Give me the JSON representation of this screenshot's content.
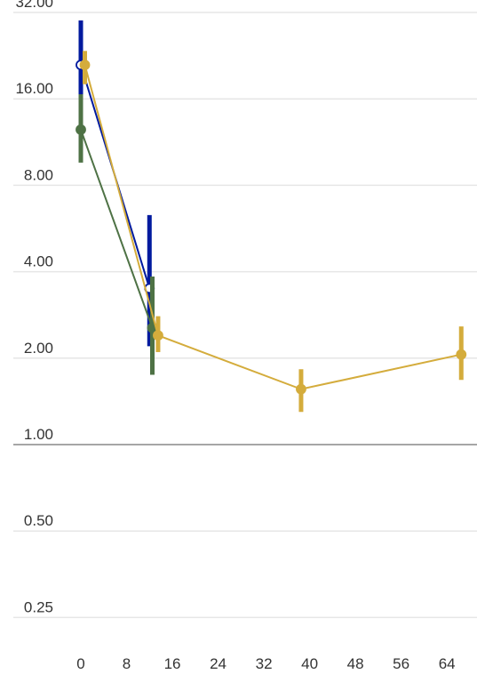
{
  "chart_data": {
    "type": "line",
    "title": "",
    "xlabel": "",
    "ylabel": "",
    "y_scale": "log2",
    "ylim": [
      0.2,
      32
    ],
    "xlim": [
      -2,
      69
    ],
    "y_ticks": [
      0.25,
      0.5,
      1,
      2,
      4,
      8,
      16,
      32
    ],
    "y_tick_labels": [
      "0.25",
      "0.50",
      "1.00",
      "2.00",
      "4.00",
      "8.00",
      "16.00",
      "32.00"
    ],
    "x_ticks": [
      0,
      8,
      16,
      24,
      32,
      40,
      48,
      56,
      64
    ],
    "x_tick_labels": [
      "0",
      "8",
      "16",
      "24",
      "32",
      "40",
      "48",
      "56",
      "64"
    ],
    "reference_line": 1,
    "grid": "horizontal",
    "legend": "none",
    "series": [
      {
        "color": "#001a9e",
        "marker_fill": "#ffffff",
        "points": [
          {
            "x": 0,
            "y": 21.0,
            "lo": 15.5,
            "hi": 30.0
          },
          {
            "x": 12,
            "y": 3.5,
            "lo": 2.2,
            "hi": 6.3
          }
        ]
      },
      {
        "color": "#4e7245",
        "marker_fill": "#4e7245",
        "points": [
          {
            "x": 0,
            "y": 12.5,
            "lo": 9.6,
            "hi": 16.6
          },
          {
            "x": 12.5,
            "y": 2.55,
            "lo": 1.75,
            "hi": 3.85
          }
        ]
      },
      {
        "color": "#d4ac3c",
        "marker_fill": "#d4ac3c",
        "points": [
          {
            "x": 0.7,
            "y": 21.0,
            "lo": 18.0,
            "hi": 23.5
          },
          {
            "x": 13.5,
            "y": 2.4,
            "lo": 2.1,
            "hi": 2.8
          },
          {
            "x": 38.5,
            "y": 1.56,
            "lo": 1.3,
            "hi": 1.83
          },
          {
            "x": 66.5,
            "y": 2.06,
            "lo": 1.68,
            "hi": 2.58
          }
        ]
      }
    ]
  }
}
